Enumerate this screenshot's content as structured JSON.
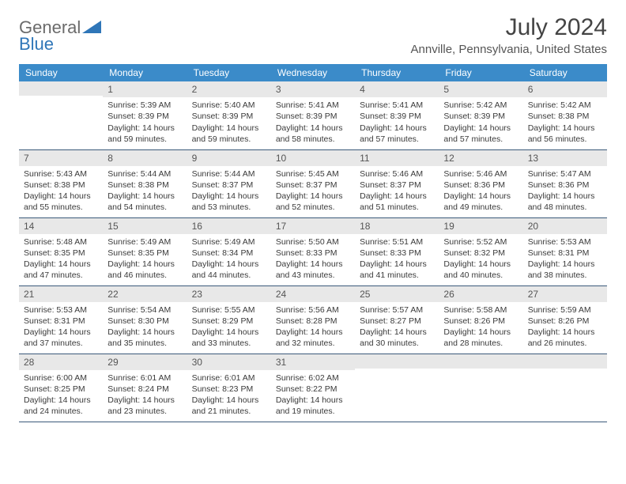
{
  "logo": {
    "word1": "General",
    "word2": "Blue"
  },
  "title": "July 2024",
  "location": "Annville, Pennsylvania, United States",
  "colors": {
    "header_bg": "#3b8bc9",
    "header_text": "#ffffff",
    "daynum_bg": "#e8e8e8",
    "cell_border": "#3b5a7a",
    "logo_gray": "#6b6b6b",
    "logo_blue": "#2f76b8"
  },
  "day_headers": [
    "Sunday",
    "Monday",
    "Tuesday",
    "Wednesday",
    "Thursday",
    "Friday",
    "Saturday"
  ],
  "weeks": [
    [
      {
        "n": "",
        "sr": "",
        "ss": "",
        "dl": ""
      },
      {
        "n": "1",
        "sr": "Sunrise: 5:39 AM",
        "ss": "Sunset: 8:39 PM",
        "dl": "Daylight: 14 hours and 59 minutes."
      },
      {
        "n": "2",
        "sr": "Sunrise: 5:40 AM",
        "ss": "Sunset: 8:39 PM",
        "dl": "Daylight: 14 hours and 59 minutes."
      },
      {
        "n": "3",
        "sr": "Sunrise: 5:41 AM",
        "ss": "Sunset: 8:39 PM",
        "dl": "Daylight: 14 hours and 58 minutes."
      },
      {
        "n": "4",
        "sr": "Sunrise: 5:41 AM",
        "ss": "Sunset: 8:39 PM",
        "dl": "Daylight: 14 hours and 57 minutes."
      },
      {
        "n": "5",
        "sr": "Sunrise: 5:42 AM",
        "ss": "Sunset: 8:39 PM",
        "dl": "Daylight: 14 hours and 57 minutes."
      },
      {
        "n": "6",
        "sr": "Sunrise: 5:42 AM",
        "ss": "Sunset: 8:38 PM",
        "dl": "Daylight: 14 hours and 56 minutes."
      }
    ],
    [
      {
        "n": "7",
        "sr": "Sunrise: 5:43 AM",
        "ss": "Sunset: 8:38 PM",
        "dl": "Daylight: 14 hours and 55 minutes."
      },
      {
        "n": "8",
        "sr": "Sunrise: 5:44 AM",
        "ss": "Sunset: 8:38 PM",
        "dl": "Daylight: 14 hours and 54 minutes."
      },
      {
        "n": "9",
        "sr": "Sunrise: 5:44 AM",
        "ss": "Sunset: 8:37 PM",
        "dl": "Daylight: 14 hours and 53 minutes."
      },
      {
        "n": "10",
        "sr": "Sunrise: 5:45 AM",
        "ss": "Sunset: 8:37 PM",
        "dl": "Daylight: 14 hours and 52 minutes."
      },
      {
        "n": "11",
        "sr": "Sunrise: 5:46 AM",
        "ss": "Sunset: 8:37 PM",
        "dl": "Daylight: 14 hours and 51 minutes."
      },
      {
        "n": "12",
        "sr": "Sunrise: 5:46 AM",
        "ss": "Sunset: 8:36 PM",
        "dl": "Daylight: 14 hours and 49 minutes."
      },
      {
        "n": "13",
        "sr": "Sunrise: 5:47 AM",
        "ss": "Sunset: 8:36 PM",
        "dl": "Daylight: 14 hours and 48 minutes."
      }
    ],
    [
      {
        "n": "14",
        "sr": "Sunrise: 5:48 AM",
        "ss": "Sunset: 8:35 PM",
        "dl": "Daylight: 14 hours and 47 minutes."
      },
      {
        "n": "15",
        "sr": "Sunrise: 5:49 AM",
        "ss": "Sunset: 8:35 PM",
        "dl": "Daylight: 14 hours and 46 minutes."
      },
      {
        "n": "16",
        "sr": "Sunrise: 5:49 AM",
        "ss": "Sunset: 8:34 PM",
        "dl": "Daylight: 14 hours and 44 minutes."
      },
      {
        "n": "17",
        "sr": "Sunrise: 5:50 AM",
        "ss": "Sunset: 8:33 PM",
        "dl": "Daylight: 14 hours and 43 minutes."
      },
      {
        "n": "18",
        "sr": "Sunrise: 5:51 AM",
        "ss": "Sunset: 8:33 PM",
        "dl": "Daylight: 14 hours and 41 minutes."
      },
      {
        "n": "19",
        "sr": "Sunrise: 5:52 AM",
        "ss": "Sunset: 8:32 PM",
        "dl": "Daylight: 14 hours and 40 minutes."
      },
      {
        "n": "20",
        "sr": "Sunrise: 5:53 AM",
        "ss": "Sunset: 8:31 PM",
        "dl": "Daylight: 14 hours and 38 minutes."
      }
    ],
    [
      {
        "n": "21",
        "sr": "Sunrise: 5:53 AM",
        "ss": "Sunset: 8:31 PM",
        "dl": "Daylight: 14 hours and 37 minutes."
      },
      {
        "n": "22",
        "sr": "Sunrise: 5:54 AM",
        "ss": "Sunset: 8:30 PM",
        "dl": "Daylight: 14 hours and 35 minutes."
      },
      {
        "n": "23",
        "sr": "Sunrise: 5:55 AM",
        "ss": "Sunset: 8:29 PM",
        "dl": "Daylight: 14 hours and 33 minutes."
      },
      {
        "n": "24",
        "sr": "Sunrise: 5:56 AM",
        "ss": "Sunset: 8:28 PM",
        "dl": "Daylight: 14 hours and 32 minutes."
      },
      {
        "n": "25",
        "sr": "Sunrise: 5:57 AM",
        "ss": "Sunset: 8:27 PM",
        "dl": "Daylight: 14 hours and 30 minutes."
      },
      {
        "n": "26",
        "sr": "Sunrise: 5:58 AM",
        "ss": "Sunset: 8:26 PM",
        "dl": "Daylight: 14 hours and 28 minutes."
      },
      {
        "n": "27",
        "sr": "Sunrise: 5:59 AM",
        "ss": "Sunset: 8:26 PM",
        "dl": "Daylight: 14 hours and 26 minutes."
      }
    ],
    [
      {
        "n": "28",
        "sr": "Sunrise: 6:00 AM",
        "ss": "Sunset: 8:25 PM",
        "dl": "Daylight: 14 hours and 24 minutes."
      },
      {
        "n": "29",
        "sr": "Sunrise: 6:01 AM",
        "ss": "Sunset: 8:24 PM",
        "dl": "Daylight: 14 hours and 23 minutes."
      },
      {
        "n": "30",
        "sr": "Sunrise: 6:01 AM",
        "ss": "Sunset: 8:23 PM",
        "dl": "Daylight: 14 hours and 21 minutes."
      },
      {
        "n": "31",
        "sr": "Sunrise: 6:02 AM",
        "ss": "Sunset: 8:22 PM",
        "dl": "Daylight: 14 hours and 19 minutes."
      },
      {
        "n": "",
        "sr": "",
        "ss": "",
        "dl": ""
      },
      {
        "n": "",
        "sr": "",
        "ss": "",
        "dl": ""
      },
      {
        "n": "",
        "sr": "",
        "ss": "",
        "dl": ""
      }
    ]
  ]
}
